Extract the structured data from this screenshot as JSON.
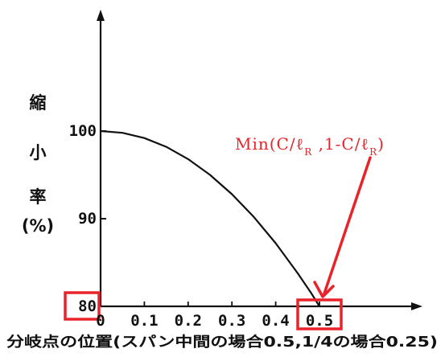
{
  "chart_data": {
    "type": "line",
    "title": "",
    "xlabel": "分岐点の位置(スパン中間の場合0.5,1/4の場合0.25)",
    "ylabel": [
      "縮",
      "小",
      "率",
      "(%)"
    ],
    "xlim": [
      0,
      0.5
    ],
    "ylim": [
      80,
      100
    ],
    "x_ticks": [
      "0",
      "0.1",
      "0.2",
      "0.3",
      "0.4",
      "0.5"
    ],
    "y_ticks": [
      "80",
      "90",
      "100"
    ],
    "x_tick_values": [
      0,
      0.1,
      0.2,
      0.3,
      0.4,
      0.5
    ],
    "y_tick_values": [
      80,
      90,
      100
    ],
    "series": [
      {
        "x": [
          0,
          0.05,
          0.1,
          0.15,
          0.2,
          0.25,
          0.3,
          0.35,
          0.4,
          0.45,
          0.48,
          0.5
        ],
        "y": [
          100,
          99.8,
          99.2,
          98.2,
          96.8,
          95.0,
          92.8,
          90.2,
          87.2,
          83.8,
          81.6,
          80
        ]
      }
    ],
    "annotation": {
      "parts": [
        {
          "text": "Min(C/ℓ"
        },
        {
          "text": "R",
          "sub": true
        },
        {
          "text": " ,1-C/ℓ"
        },
        {
          "text": "R",
          "sub": true
        },
        {
          "text": ")"
        }
      ],
      "points_to_x": 0.5,
      "color": "#e8242a"
    },
    "highlighted_ticks": [
      "80",
      "0.5"
    ],
    "highlight_color": "#e8242a",
    "grid": false,
    "legend": "none"
  }
}
